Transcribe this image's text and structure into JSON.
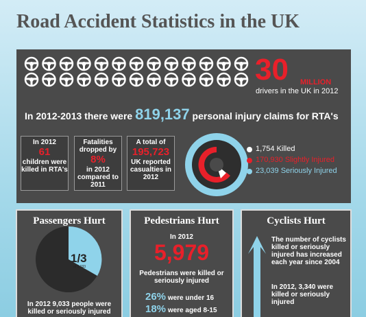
{
  "header": {
    "title": "Road Accident Statistics in the UK"
  },
  "drivers": {
    "number": "30",
    "unit": "MILLION",
    "caption": "drivers in the UK in 2012"
  },
  "claims": {
    "before": "In 2012-2013 there were",
    "number": "819,137",
    "after": "personal injury claims for RTA's"
  },
  "boxes": [
    {
      "top": "In 2012",
      "number": "61",
      "bottom": "children were killed in RTA's"
    },
    {
      "top": "Fatalities dropped by",
      "number": "8%",
      "bottom": "in 2012 compared to 2011"
    },
    {
      "top": "A total of",
      "number": "195,723",
      "bottom": "UK reported casualties in 2012"
    }
  ],
  "casualties": [
    "1,754 Killed",
    "170,930 Slightly Injured",
    "23,039 Seriously Injured"
  ],
  "passengers": {
    "title": "Passengers Hurt",
    "fraction": "1/3",
    "fraction_note": "of 9,033",
    "caption": "In 2012 9,033 people were killed or seriously injured"
  },
  "pedestrians": {
    "title": "Pedestrians Hurt",
    "year": "In 2012",
    "number": "5,979",
    "caption": "Pedestrians were killed or seriously injured",
    "stats": [
      {
        "percent": "26%",
        "text": "were under 16"
      },
      {
        "percent": "18%",
        "text": "were aged 8-15"
      }
    ]
  },
  "cyclists": {
    "title": "Cyclists Hurt",
    "text1": "The number of cyclists killed or seriously injured has increased each year since 2004",
    "text2": "In 2012, 3,340 were killed or seriously injured"
  }
}
